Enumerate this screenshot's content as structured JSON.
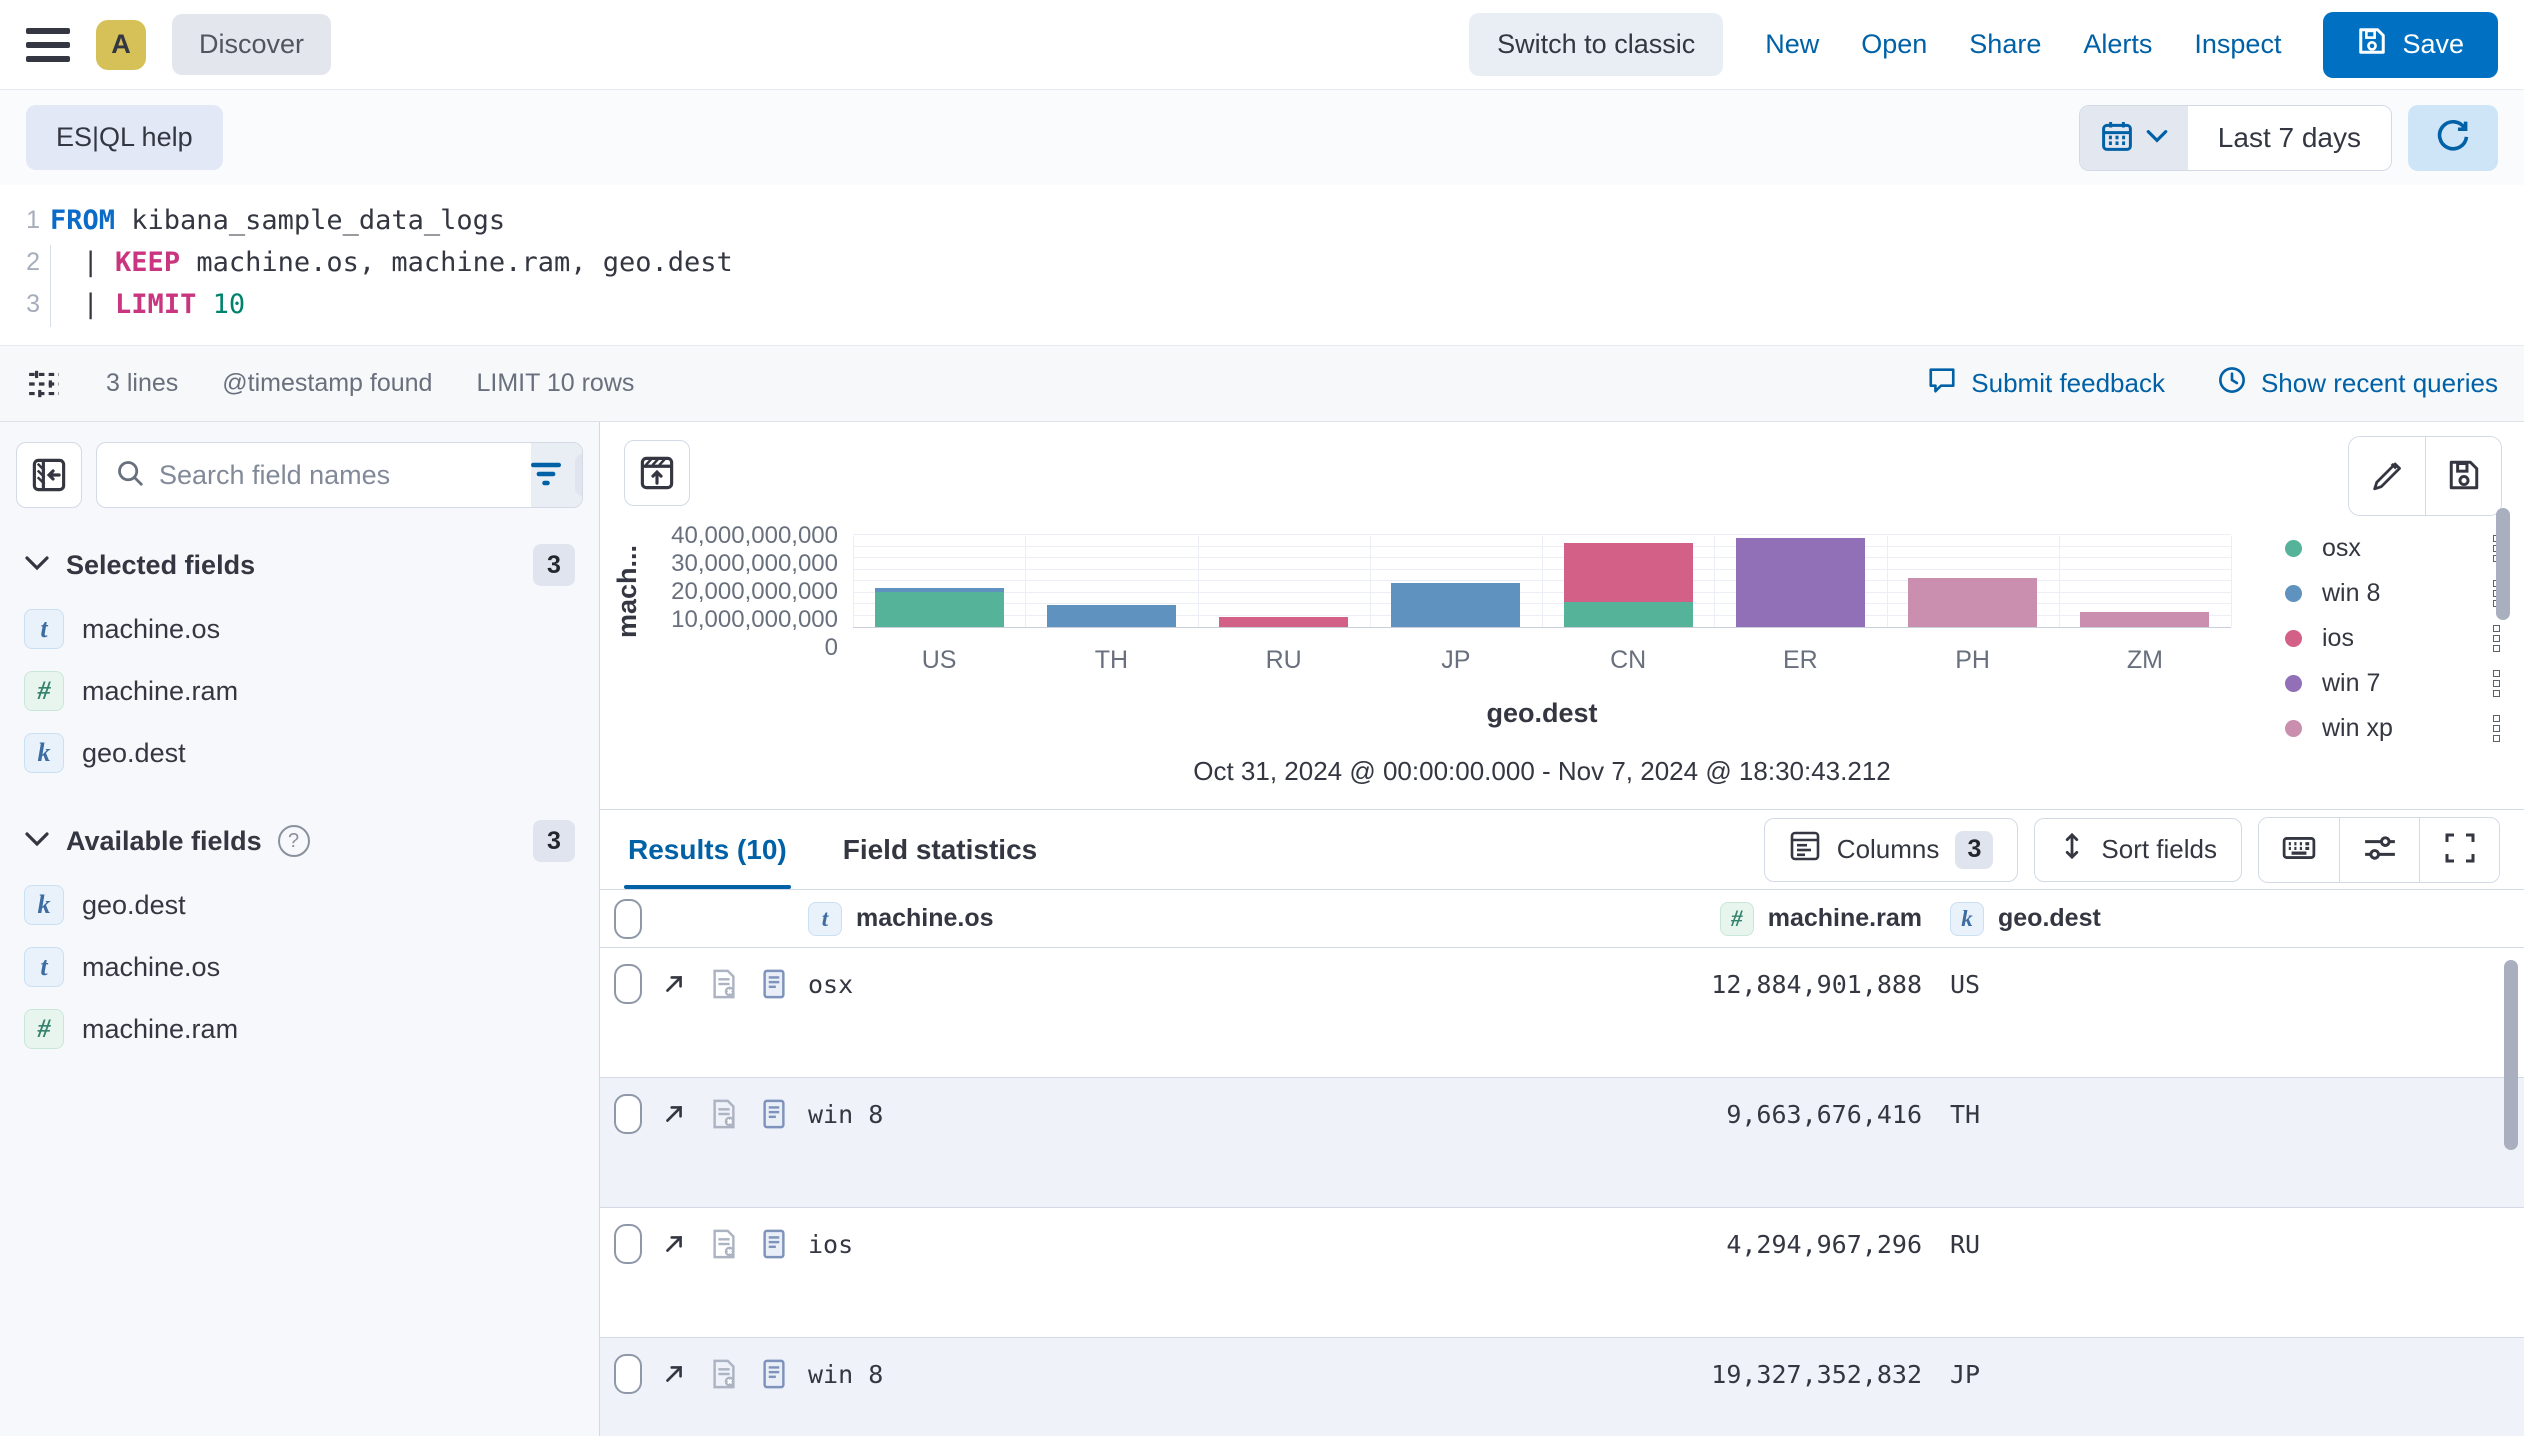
{
  "topbar": {
    "avatar_initial": "A",
    "breadcrumb": "Discover",
    "switch_to_classic": "Switch to classic",
    "nav": [
      "New",
      "Open",
      "Share",
      "Alerts",
      "Inspect"
    ],
    "save_label": "Save"
  },
  "querybar": {
    "esql_help_label": "ES|QL help",
    "time_range_label": "Last 7 days"
  },
  "editor": {
    "line_numbers": [
      "1",
      "2",
      "3"
    ],
    "line1": {
      "kw": "FROM",
      "text": " kibana_sample_data_logs"
    },
    "line2": {
      "pipe": "|",
      "kw": "KEEP",
      "text": " machine.os, machine.ram, geo.dest"
    },
    "line3": {
      "pipe": "|",
      "kw": "LIMIT",
      "value": "10"
    }
  },
  "statusbar": {
    "lines": "3 lines",
    "timestamp": "@timestamp found",
    "limit": "LIMIT 10 rows",
    "submit_feedback": "Submit feedback",
    "show_recent_queries": "Show recent queries"
  },
  "sidebar": {
    "search_placeholder": "Search field names",
    "filter_count": "0",
    "selected_fields": {
      "label": "Selected fields",
      "count": "3",
      "items": [
        {
          "type": "t",
          "name": "machine.os"
        },
        {
          "type": "#",
          "name": "machine.ram"
        },
        {
          "type": "k",
          "name": "geo.dest"
        }
      ]
    },
    "available_fields": {
      "label": "Available fields",
      "count": "3",
      "items": [
        {
          "type": "k",
          "name": "geo.dest"
        },
        {
          "type": "t",
          "name": "machine.os"
        },
        {
          "type": "#",
          "name": "machine.ram"
        }
      ]
    }
  },
  "chart_data": {
    "type": "bar",
    "stacked": true,
    "xlabel": "geo.dest",
    "ylabel": "mach...",
    "subtitle": "Oct 31, 2024 @ 00:00:00.000 - Nov 7, 2024 @ 18:30:43.212",
    "categories": [
      "US",
      "TH",
      "RU",
      "JP",
      "CN",
      "ER",
      "PH",
      "ZM"
    ],
    "ylim": [
      0,
      40000000000
    ],
    "ytick_interval": 10000000000,
    "grid": true,
    "legend_position": "right",
    "series": [
      {
        "name": "osx",
        "color": "#54B399",
        "values": [
          15032385536,
          0,
          0,
          0,
          10737418240,
          0,
          0,
          0
        ]
      },
      {
        "name": "win 8",
        "color": "#6092C0",
        "values": [
          2147483648,
          9663676416,
          0,
          19327352832,
          0,
          0,
          0,
          0
        ]
      },
      {
        "name": "ios",
        "color": "#D36086",
        "values": [
          0,
          0,
          4294967296,
          0,
          25769803776,
          0,
          0,
          0
        ]
      },
      {
        "name": "win 7",
        "color": "#9170B8",
        "values": [
          0,
          0,
          0,
          0,
          0,
          38654705664,
          0,
          0
        ]
      },
      {
        "name": "win xp",
        "color": "#CA8EAE",
        "values": [
          0,
          0,
          0,
          0,
          0,
          0,
          21474836480,
          6442450944
        ]
      }
    ]
  },
  "results": {
    "tab_results": "Results (10)",
    "tab_field_stats": "Field statistics",
    "columns_label": "Columns",
    "columns_count": "3",
    "sort_label": "Sort fields",
    "table": {
      "headers": [
        {
          "type": "t",
          "label": "machine.os"
        },
        {
          "type": "#",
          "label": "machine.ram"
        },
        {
          "type": "k",
          "label": "geo.dest"
        }
      ],
      "rows": [
        {
          "machine_os": "osx",
          "machine_ram": "12,884,901,888",
          "geo_dest": "US"
        },
        {
          "machine_os": "win 8",
          "machine_ram": "9,663,676,416",
          "geo_dest": "TH"
        },
        {
          "machine_os": "ios",
          "machine_ram": "4,294,967,296",
          "geo_dest": "RU"
        },
        {
          "machine_os": "win 8",
          "machine_ram": "19,327,352,832",
          "geo_dest": "JP"
        }
      ]
    }
  }
}
